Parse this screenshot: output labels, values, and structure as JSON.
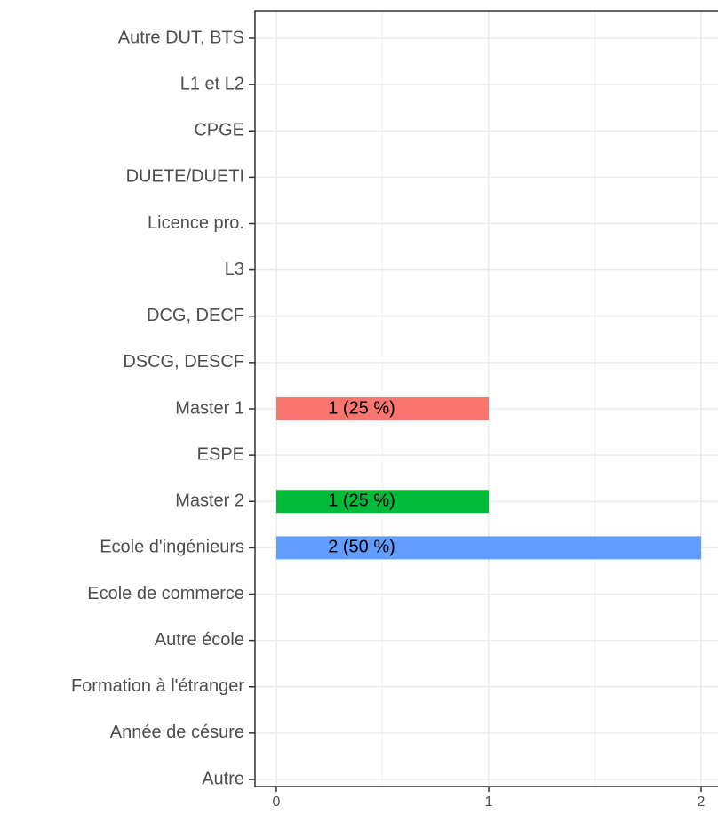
{
  "chart_data": {
    "type": "barh",
    "categories": [
      "Autre DUT, BTS",
      "L1 et L2",
      "CPGE",
      "DUETE/DUETI",
      "Licence pro.",
      "L3",
      "DCG, DECF",
      "DSCG, DESCF",
      "Master 1",
      "ESPE",
      "Master 2",
      "Ecole d'ingénieurs",
      "Ecole de commerce",
      "Autre école",
      "Formation à l'étranger",
      "Année de césure",
      "Autre"
    ],
    "values": [
      0,
      0,
      0,
      0,
      0,
      0,
      0,
      0,
      1,
      0,
      1,
      2,
      0,
      0,
      0,
      0,
      0
    ],
    "value_labels": [
      null,
      null,
      null,
      null,
      null,
      null,
      null,
      null,
      "1 (25 %)",
      null,
      "1 (25 %)",
      "2 (50 %)",
      null,
      null,
      null,
      null,
      null
    ],
    "colors": [
      null,
      null,
      null,
      null,
      null,
      null,
      null,
      null,
      "#F8766D",
      null,
      "#00BA38",
      "#619CFF",
      null,
      null,
      null,
      null,
      null
    ],
    "xlim": [
      -0.1,
      2.1
    ],
    "xticks": [
      0,
      1,
      2
    ],
    "xminorticks": [
      0.5,
      1.5
    ],
    "grid": true
  }
}
